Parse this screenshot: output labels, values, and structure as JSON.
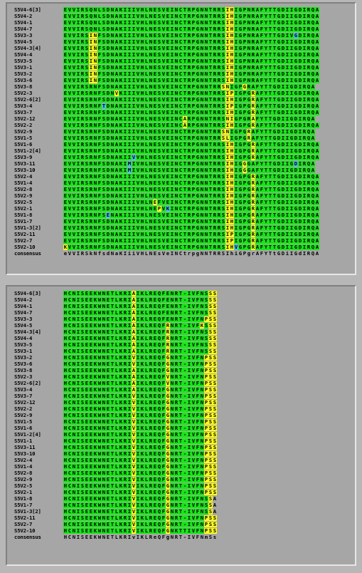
{
  "colors": {
    "identical": "#19e619",
    "similar": "#ffff1a",
    "other": "#47c3d9",
    "panel_bg": "#a6a6a6",
    "window_bg": "#b7b7b7"
  },
  "panel1": {
    "rows": [
      {
        "label": "S5V4-6[3]",
        "seq": "EVVIRSQNLSDNAKIIIVHLNESVEINCTRPGNNTRRSIHIGPNRAFYTTGDIIGDIRQA",
        "hl": "GGGGGGGGGGGGGGGGGGGGGGGGGGGGGGGGGGGGGGYYGGGGGGGGGGGGGGGGGGGG"
      },
      {
        "label": "S5V4-2",
        "seq": "EVVIRSQNLSDNAKIIIVHLNESVEINCTRPGNNTRRSIHIGPNRAFYTTGDIIGDIRQA",
        "hl": "GGGGGGGGGGGGGGGGGGGGGGGGGGGGGGGGGGGGGGYYGGGGGGGGGGGGGGGGGGGG"
      },
      {
        "label": "S5V4-1",
        "seq": "EVVIRSQNLSDNAKIIIVHLNESVEINCTRPGNNTRRSIHIGPNRAFYTTGDIIGDIRQA",
        "hl": "GGGGGGGGGGGGGGGGGGGGGGGGGGGGGGGGGGGGGGYYGGGGGGGGGGGGGGGGGGGG"
      },
      {
        "label": "S5V4-7",
        "seq": "EVVIRSQNLSDNAKIIIVHLNESVEINCTRPGNNTRRSIHIGPNRAFYTTGDIIGDIRQA",
        "hl": "GGGGGGGGGGGGGGGGGGGGGGGGGGGGGGGGGGGGGGYYGGGGGGGGGGGGGGGGGGGG"
      },
      {
        "label": "S5V3-3",
        "seq": "EVVIRSINFSDNAKIIIVHLNESVEINCTRPGNNTRRSIHIGPNRAFYTTGDIVGDIRQA",
        "hl": "GGGGGGYYGGGGGGGGGGGGGGGGGGGGGGGGGGGGGGYYGGGGGGGGGGGGGGBGGGGG"
      },
      {
        "label": "S5V4-5",
        "seq": "EVVIRSINFSDNAKIIIVHLNESVEINCTRPGNNTRRSIHIGPNRAFYTTGDIIGDIRQA",
        "hl": "GGGGGGYYGGGGGGGGGGGGGGGGGGGGGGGGGGGGGGYYGGGGGGGGGGGGGGGGGGGG"
      },
      {
        "label": "S5V4-3[4]",
        "seq": "EVVIRSINFSDNAKIIIVHLNESVEINCTRPGNNTRRSIHIGPNRAFYTTGDIIGDIRQA",
        "hl": "GGGGGGYYGGGGGGGGGGGGGGGGGGGGGGGGGGGGGGYYGGGGGGGGGGGGGGGGGGGG"
      },
      {
        "label": "S5V4-4",
        "seq": "EVVIRSINFSDNAKIIIVHLNESVEINCTRPGNNTRRSIHIGPNRAFYTTGDIIGDIRQA",
        "hl": "GGGGGGYYGGGGGGGGGGGGGGGGGGGGGGGGGGGGGGYYGGGGGGGGGGGGGGGGGGGG"
      },
      {
        "label": "S5V3-5",
        "seq": "EVVIRSINFSDNAKIIIVHLNESVEINCTRPGNNTRRSIHIGPNRAFYTTGDIIGDIRQA",
        "hl": "GGGGGGYYGGGGGGGGGGGGGGGGGGGGGGGGGGGGGGYYGGGGGGGGGGGGGGGGGGGG"
      },
      {
        "label": "S5V3-1",
        "seq": "EVVIRSINFSDNAKIIIVHLNESVEINCTRPGNNTRRSIHIGPNRAFYTTGDIIGDIRQA",
        "hl": "GGGGGGYYGGGGGGGGGGGGGGGGGGGGGGGGGGGGGGYYGGGGGGGGGGGGGGGGGGGG"
      },
      {
        "label": "S5V3-2",
        "seq": "EVVIRSINFSDNAKIIIVHLNESVEINCTRPGNNTRRSIHIGPNRAFYTTGDIIGDIRQA",
        "hl": "GGGGGGYYGGGGGGGGGGGGGGGGGGGGGGGGGGGGGGYYGGGGGGGGGGGGGGGGGGGG"
      },
      {
        "label": "S5V3-6",
        "seq": "EVVIRSINFSDNAKIIIVHLNESVEINCTRPGNNTRRSIHIGPNRAFYTTGDIIGDIRQA",
        "hl": "GGGGGGYYGGGGGGGGGGGGGGGGGGGGGGGGGGGGGGYYGGGGGGGGGGGGGGGGGGGG"
      },
      {
        "label": "S5V3-8",
        "seq": "EVVIRSRNFSDNAKIIIVHLNESVEINCTRPGNNTRRSNIGPGRAFYTTGDIIGDIRQA",
        "hl": "GGGGGGGGGGGGGGGGGGGGGGGGGGGGGGGGGGGGGYYGGGYGGGGGGGGGGGGGGGG"
      },
      {
        "label": "S5V2-3",
        "seq": "EVVIRSRNFSDNVKIIIVHLNESVEINCTRPGNNTRRSIPIGPGRAFYTTGDIIGDIRQA",
        "hl": "GGGGGGGGGGGGYGGGGGGGGGGGGGGGGGGGGGGGGGYYGGGGYGGGGGGGGGGGGGGG"
      },
      {
        "label": "S5V2-6[2]",
        "seq": "EVVIRSRNFSDNAKIIIVHLNESVEINCTRPGNNTRRSIHIGPGRAFYTTGDIIGDIRQA",
        "hl": "GGGGGGGGGGGGGGGGGGGGGGGGGGGGGGGGGGGGGGYYGGGGYGGGGGGGGGGGGGGG"
      },
      {
        "label": "S5V3-4",
        "seq": "EVVIRSRNFTDNAKIIIVHLNESVEINCTRPGNNTRRSIPIGPGRAFYTTGDIIGDIRQA",
        "hl": "GGGGGGGGGBGGGGGGGGGGGGGGGGGGGGGGGGGGGGYYGGGGYGGGGGGGGGGGGGGG"
      },
      {
        "label": "S5V3-7",
        "seq": "EVVIRSRNFSDNAKIIIVHLNESVEINCTRPGNNTRRSIHIGPGRAFYTTGDIIGDIRQA",
        "hl": "GGGGGGGGGGGGGGGGGGGGGGGGGGGGGGGGGGGGGGYYGGGGYGGGGGGGGGGGGGGG"
      },
      {
        "label": "S5V2-12",
        "seq": "EVVIRSRNFSDNAKIIIVHLNESVEINCARPGNNTRRSNIGPGRAFYTTGDIIGDIRQA",
        "hl": "GGGGGGGGGGGGGGGGGGGGGGGGGGGGYGGGGGGGGGYYGGGGYGGGGGGGGGGGGGG"
      },
      {
        "label": "S5V2-2",
        "seq": "EVVIRSRNFSDNAKIIIVHLNESVEINCARPGNNTRRSIHIGPGRAFYTTGDIIGDIRQA",
        "hl": "GGGGGGGGGGGGGGGGGGGGGGGGGGGGYGGGGGGGGGYYGGGGYGGGGGGGGGGGGGGG"
      },
      {
        "label": "S5V2-9",
        "seq": "EVVIRSRNFSDNAKIIIVHLNESVEINCTRPGNNTRRSNIGPGRAFYTTGDIIGDIRQA",
        "hl": "GGGGGGGGGGGGGGGGGGGGGGGGGGGGGGGGGGGGGYYGGGGYGGGGGGGGGGGGGGG"
      },
      {
        "label": "S5V1-5",
        "seq": "EVVIRSRNFSDNAKIIIVHLNESVEINCTRPGNNTRRSLIGPGRAFYTTGDIIGDIRQA",
        "hl": "GGGGGGGGGGGGGGGGGGGGGGGGGGGGGGGGGGGGGYYGGGGYGGGGGGGGGGGGGGG"
      },
      {
        "label": "S5V1-6",
        "seq": "EVVIRSRNFSDNAKIIIVHLNESVEINCTRPGNNTRRSIHIGPGRAFYTTGDIIGDIRQA",
        "hl": "GGGGGGGGGGGGGGGGGGGGGGGGGGGGGGGGGGGGGGYYGGGGYGGGGGGGGGGGGGGG"
      },
      {
        "label": "S5V1-2[4]",
        "seq": "EVVIRSRNFSDNAKIIIVHLNESVEINCTRPGNNTRRSIHIGPGRAFYTTGDIIGDIRQA",
        "hl": "GGGGGGGGGGGGGGGGGGGGGGGGGGGGGGGGGGGGGGYYGGGGYGGGGGGGGGGGGGGG"
      },
      {
        "label": "S5V3-9",
        "seq": "EVVIRSRNFSDNAKIIVVHLNESVEINCTRPGNNTRRSIHIGPGRAFYTTGDIIGDIRQA",
        "hl": "GGGGGGGGGGGGGGGGBGGGGGGGGGGGGGGGGGGGGGYYGGGGYGGGGGGGGGGGGGGG"
      },
      {
        "label": "S5V3-11",
        "seq": "EVVIRSRNFSDNAKIMIVHLNESVEINCTRPGNNTRRSIHIGGGAFYTTGDIIGDIRQA",
        "hl": "GGGGGGGGGGGGGGGBGGGGGGGGGGGGGGGGGGGGGGYYGGYGGGGGGGGGGGBGGGG"
      },
      {
        "label": "S5V3-10",
        "seq": "EVVIRSRNFSDNAKIMIVHLNESVEINCTRPGNNTRRSIHIGGGAFYTTGDIIGDIRQA",
        "hl": "GGGGGGGGGGGGGGGBGGGGGGGGGGGGGGGGGGGGGGYYGGYGGGGGGGGGGGGGGGG"
      },
      {
        "label": "S5V2-4",
        "seq": "EVVIRSRNFSDNAKIIIVHLNESVEINCTRPGNNTRRSIHIGPGRAFYTTGDIIGDIRQA",
        "hl": "GGGGGGGGGGGGGGGGGGGGGGGGGGGGGGGGGGGGGGYYGGGGYGGGGGGGGGGGGGGG"
      },
      {
        "label": "S5V1-4",
        "seq": "EVVIRSRNFSDNAKIIIVHLNESVEINCTRPGNNTRRSIHIGPGRAFYTTGDIIGDIRQA",
        "hl": "GGGGGGGGGGGGGGGGGGGGGGGGGGGGGGGGGGGGGGYYGGGGYGGGGGGGGGGGGGGG"
      },
      {
        "label": "S5V2-8",
        "seq": "EVVIRSRNFSDNAKIIIVHLNESVEINCTRPGNNTRRSIHIGPGRAFYTTGDIIGDIRQA",
        "hl": "GGGGGGGGGGGGGGGGGGGGGGGGGGGGGGGGGGGGGGYYGGGGYGGGGGGGGGGGGGGG"
      },
      {
        "label": "S5V2-9",
        "seq": "EVVIRSRNFSDNAKIIIVHLNESVEINCTRPGNNTRRSIHIGPGRAFYTTGDIIGDIRQA",
        "hl": "GGGGGGGGGGGGGGGGGGGGGGGGGGGGGGGGGGGGGGYYGGGGYGGGGGGGGGGGGGGG"
      },
      {
        "label": "S5V2-5",
        "seq": "EVVIRSRNFSDNAKIIIVHLNEFVEINCTRPGNNTRRSIHIGPGRAFYTTGDIIGDIRQA",
        "hl": "GGGGGGGGGGGGGGGGGGGGGYGGGGGGGGGGGGGGGGYYGGGGYGGGGGGGGGGGGGGG"
      },
      {
        "label": "S5V2-1",
        "seq": "EVVIRSRNFSDNAKIIIVHLNEPVKINCTRPGNNTRRSIHIGPGRAFYTTGDIIGDIRQA",
        "hl": "GGGGGGGGGGGGGGGGGGGGGGYGBGGGGGGGGGGGGGYYGGGGYGGGGGGGGGGGGGGG"
      },
      {
        "label": "S5V1-8",
        "seq": "EVVIRSRNFSENAKIIIVHLNESVEINCTRPGNNTRRSIHIGPGRAFYTTGDIIGDIRQA",
        "hl": "GGGGGGGGGGBGGGGGGGGGGGGGGGGGGGGGGGGGGGYYGGGGYGGGGGGGGGGGGGGG"
      },
      {
        "label": "S5V1-7",
        "seq": "EVVIRSRNFSDNAKIIIVHLNESVEINCTRPGNNTRRSIHIGPGRAFYTTGDIIGDIRQA",
        "hl": "GGGGGGGGGGGGGGGGGGGGGGGGGGGGGGGGGGGGGGYYGGGGYGGGGGGGGGGGGGGG"
      },
      {
        "label": "S5V1-3[2]",
        "seq": "EVVIRSRNFSDNAKIIIVHLNESVEINCTRPGNNTRRSIHIGPGRAFYTTGDIIGDIRQA",
        "hl": "GGGGGGGGGGGGGGGGGGGGGGGGGGGGGGGGGGGGGGYYGGGGYGGGGGGGGGGGGGGG"
      },
      {
        "label": "S5V2-11",
        "seq": "EVVIRSRNFSDNAKIIIVHLNESVEINCTRPGNNTRRSIPIGPGRAFYTTGDIIGDIRQA",
        "hl": "GGGGGGGGGGGGGGGGGGGGGGGGGGGGGGGGGGGGGGYYGGGGYGGGGGGGGGGGGGGG"
      },
      {
        "label": "S5V2-7",
        "seq": "EVVIRSRNFSDNAKIIIVHLNESVEINCTRPGNNTRRSIPIGPGRAFYTTGDIIGDIRQA",
        "hl": "GGGGGGGGGGGGGGGGGGGGGGGGGGGGGGGGGGGGGGYYGGGGYGGGGGGGGGGGGGGG"
      },
      {
        "label": "S5V2-10",
        "seq": "KVVIRSRNFSDNAKIIIVHLNESVEINCTRPGNNTRRSIHVGPGRAFYTTGDIIGDIRQA",
        "hl": "YGGGGGGGGGGGGGGGGGGGGGGGGGGGGGGGGGGGGGYYBGGGYGGGGGGGGGGGGGGG"
      },
      {
        "label": "consensus",
        "seq": "eVVIRSkNfsdNaKIiiVHLNEsVeINCtrpgNNTRRSIhiGPgrAFYTtGDiIGdIRQA",
        "hl": "NNNNNNNNNNNNNNNNNNNNNNNNNNNNNNNNNNNNNNNNNNNNNNNNNNNNNNNNNNNN"
      }
    ]
  },
  "panel2": {
    "rows": [
      {
        "label": "S5V4-6[3]",
        "seq": "HCNISEEKWNETLKRIAIKLREQFENRT-IVFNSSS",
        "hl": "GGGGGGGGGGGGGGGGYGGGGGGGGGGGGGGGGGYY"
      },
      {
        "label": "S5V4-2",
        "seq": "HCNISEEKWNETLKRIAIKLREQFENRT-IVFNSSS",
        "hl": "GGGGGGGGGGGGGGGGYGGGGGGGGGGGGGGGGGYY"
      },
      {
        "label": "S5V4-1",
        "seq": "HCNISEEKWNETLKRIAIKLREQFENRT-IVFNSSS",
        "hl": "GGGGGGGGGGGGGGGGYGGGGGGGGGGGGGGGGGYY"
      },
      {
        "label": "S5V4-7",
        "seq": "HCNISEEKWNETLKRIAIKLREQFENRT-IVFNSSS",
        "hl": "GGGGGGGGGGGGGGGGYGGGGGGGGGGGGGGGGGYY"
      },
      {
        "label": "S5V3-3",
        "seq": "HCNISEEKWNETLKRIAIKLREQFENRT-IVFNPSS",
        "hl": "GGGGGGGGGGGGGGGGYGGGGGGGGGGGGGGGGYYY"
      },
      {
        "label": "S5V4-5",
        "seq": "HCNISEEKWNETLKRIAIKLREQFRNRT-IVFKSSS",
        "hl": "GGGGGGGGGGGGGGGGYGGGGGGGYGGGGGGGYGYY"
      },
      {
        "label": "S5V4-3[4]",
        "seq": "HCNISEEKWNETLKRIAIKLREQFRNRT-IVFNSSS",
        "hl": "GGGGGGGGGGGGGGGGYGGGGGGGYGGGGGGGGGYY"
      },
      {
        "label": "S5V4-4",
        "seq": "HCNISEEKWNETLKRIAIKLREQFRNRT-IVFNSSS",
        "hl": "GGGGGGGGGGGGGGGGYGGGGGGGYGGGGGGGGGYY"
      },
      {
        "label": "S5V3-5",
        "seq": "HCNISEEKWNETLKRIAIKLREQFRNRT-IVFNSSS",
        "hl": "GGGGGGGGGGGGGGGGYGGGGGGGYGGGGGGGGGYY"
      },
      {
        "label": "S5V3-1",
        "seq": "HCNISEEKWNETLKRIAIKLREQFRNRT-IVFNSSS",
        "hl": "GGGGGGGGGGGGGGGGYGGGGGGGYGGGGGGGGGYY"
      },
      {
        "label": "S5V3-2",
        "seq": "HCNISEEKWNETLKRIVIKLREQFGNRT-IVFNPSS",
        "hl": "GGGGGGGGGGGGGGGGYGGGGGGGYGGGGGGGGYYY"
      },
      {
        "label": "S5V3-6",
        "seq": "HCNISEEKWNETLKRIVIKLREQFGNRT-IVFNPSS",
        "hl": "GGGGGGGGGGGGGGGGYGGGGGGGYGGGGGGGGYYY"
      },
      {
        "label": "S5V3-8",
        "seq": "HCNISEEKWNETLKRIAIKLREQFGNRT-IVFNPSS",
        "hl": "GGGGGGGGGGGGGGGGYGGGGGGGYGGGGGGGGYYY"
      },
      {
        "label": "S5V2-3",
        "seq": "HCNISEEKWNETLKRIAIKLREQFVNRT-IVFNPSS",
        "hl": "GGGGGGGGGGGGGGGGYGGGGGGGYGGGGGGGGYYY"
      },
      {
        "label": "S5V2-6[2]",
        "seq": "HCNISEEKWNETLKRIAIKLREQFVNRT-IVFNPSS",
        "hl": "GGGGGGGGGGGGGGGGYGGGGGGGYGGGGGGGGYYY"
      },
      {
        "label": "S5V3-4",
        "seq": "HCNISEEKWNETLKRIAIKLREQFGNRT-IVFNPSS",
        "hl": "GGGGGGGGGGGGGGGGYGGGGGGGYGGGGGGGGYYY"
      },
      {
        "label": "S5V3-7",
        "seq": "HCNISEEKWNETLKRIVIKLREQFGNRT-IVFNPSS",
        "hl": "GGGGGGGGGGGGGGGGYGGGGGGGYGGGGGGGGYYY"
      },
      {
        "label": "S5V2-12",
        "seq": "HCNISEEKWNETLKRIVIKLREQFGNRT-IVFNPSS",
        "hl": "GGGGGGGGGGGGGGGGYGGGGGGGYGGGGGGGGYYY"
      },
      {
        "label": "S5V2-2",
        "seq": "HCNISEEKWNETLKRIVIKLREQFGNRT-IVFNPSS",
        "hl": "GGGGGGGGGGGGGGGGYGGGGGGGYGGGGGGGGYYY"
      },
      {
        "label": "S5V2-9",
        "seq": "HCNISEEKWNETLKRIVIKLREQFGNRT-IVFNPSS",
        "hl": "GGGGGGGGGGGGGGGGYGGGGGGGYGGGGGGGGYYY"
      },
      {
        "label": "S5V1-5",
        "seq": "HCNISEEKWNETLKRIVIKLREQFGNRT-IVFNPSS",
        "hl": "GGGGGGGGGGGGGGGGYGGGGGGGYGGGGGGGGYYY"
      },
      {
        "label": "S5V1-6",
        "seq": "HCNISEEKWNETLKRIVIKLREQFGNRT-IVFNPSS",
        "hl": "GGGGGGGGGGGGGGGGYGGGGGGGYGGGGGGGGYYY"
      },
      {
        "label": "S5V1-2[4]",
        "seq": "HCNISEEKWNETLKRIVIKLREQFGNRT-IVFNPSS",
        "hl": "GGGGGGGGGGGGGGGGYGGGGGGGYGGGGGGGGYYY"
      },
      {
        "label": "S5V1-1",
        "seq": "HCNISEEKWNETLKRIVIKLREQFGNRT-IVFNPSS",
        "hl": "GGGGGGGGGGGGGGGGYGGGGGGGYGGGGGGGGYYY"
      },
      {
        "label": "S5V3-11",
        "seq": "HCNISEEKWNETLKRIVIKLREQFGNRT-IVFNPSS",
        "hl": "GGGGGGGGGGGGGGGGYGGGGGGGYGGGGGGGGYYY"
      },
      {
        "label": "S5V3-10",
        "seq": "HCNISEEKWNETLKRIVIKLREQFGNRT-IVFNPSS",
        "hl": "GGGGGGGGGGGGGGGGYGGGGGGGYGGGGGGGGYYY"
      },
      {
        "label": "S5V2-4",
        "seq": "HCNISEEKWNETLKRIVIKLREQFGNRT-IVFNPSS",
        "hl": "GGGGGGGGGGGGGGGGYGGGGGGGYGGGGGGGGYYY"
      },
      {
        "label": "S5V1-4",
        "seq": "HCNISEEKWNETLKRIVIKLREQFGNRT-IVFNPSS",
        "hl": "GGGGGGGGGGGGGGGGYGGGGGGGYGGGGGGGGYYY"
      },
      {
        "label": "S5V2-8",
        "seq": "HCNISEEKWNETLKRIVIKLREQFGNRT-IVFNPSS",
        "hl": "GGGGGGGGGGGGGGGGYGGGGGGGYGGGGGGGGYYY"
      },
      {
        "label": "S5V2-9",
        "seq": "HCNISEEKWNETLKRIVIKLREQFGNRT-IVFNPSS",
        "hl": "GGGGGGGGGGGGGGGGYGGGGGGGYGGGGGGGGYYY"
      },
      {
        "label": "S5V2-5",
        "seq": "HCNISEEKWNETLKRIVIKLREQFGNRT-IVFNPSS",
        "hl": "GGGGGGGGGGGGGGGGYGGGGGGGYGGGGGGGGYYY"
      },
      {
        "label": "S5V2-1",
        "seq": "HCNISEEKWNETLKRIVIKLREQFGNRT-IVFNPSS",
        "hl": "GGGGGGGGGGGGGGGGYGGGGGGGYGGGGGGGGYYY"
      },
      {
        "label": "S5V1-8",
        "seq": "HCNISEEKWNETLKRIVIKLREQFGNRT-IVFNSSA",
        "hl": "GGGGGGGGGGGGGGGGYGGGGGGGYGGGGGGGGGYN"
      },
      {
        "label": "S5V1-7",
        "seq": "HCNISEEKWNETLKRIVIKLREQFGNRT-IVFNSSA",
        "hl": "GGGGGGGGGGGGGGGGYGGGGGGGYGGGGGGGGGYN"
      },
      {
        "label": "S5V1-3[2]",
        "seq": "HCNISEEKWNETLKRIVIKLREQFGNRT-IVFNSSA",
        "hl": "GGGGGGGGGGGGGGGGYGGGGGGGYGGGGGGGGGYN"
      },
      {
        "label": "S5V2-11",
        "seq": "HCNISEEKWNETLKRIVIKLREQFGNRT-IVFNPSS",
        "hl": "GGGGGGGGGGGGGGGGYGGGGGGGYGGGGGGGGYYY"
      },
      {
        "label": "S5V2-7",
        "seq": "HCNISEEKWNETLKRIVIKLREQFGNRT-IVFNPSS",
        "hl": "GGGGGGGGGGGGGGGGYGGGGGGGYGGGGGGGGYYY"
      },
      {
        "label": "S5V2-10",
        "seq": "HCNISEEKWNETLKRIVIKLREQFGNKTTIVFNPSS",
        "hl": "GGGGGGGGGGGGGGGGYGGGGGGGYGGGGGGGGYYY"
      },
      {
        "label": "consensus",
        "seq": "HCNISEEKWNETLKRIvIKLReQFgNRT-IVFNmSs",
        "hl": "NNNNNNNNNNNNNNNNNNNNNNNNNNNNNNNNNNNN"
      }
    ]
  }
}
